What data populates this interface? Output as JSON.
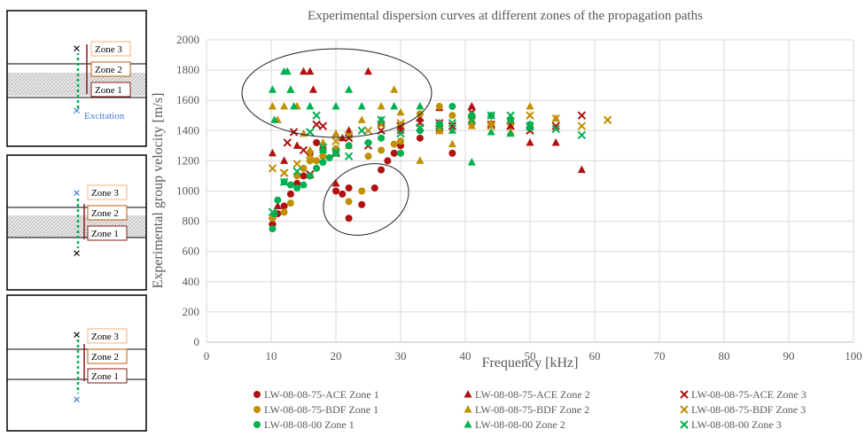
{
  "chart_data": {
    "type": "scatter",
    "title": "Experimental dispersion curves at different zones of the propagation paths",
    "x_label": "Frequency [kHz]",
    "y_label": "Experimental group velocity [m/s]",
    "xlim": [
      0,
      100
    ],
    "xticks": [
      0,
      10,
      20,
      30,
      40,
      50,
      60,
      70,
      80,
      90,
      100
    ],
    "ylim": [
      0,
      2000
    ],
    "yticks": [
      0,
      200,
      400,
      600,
      800,
      1000,
      1200,
      1400,
      1600,
      1800,
      2000
    ],
    "grid": true,
    "series": [
      {
        "name": "LW-08-08-75-ACE Zone 1",
        "color": "#b01010",
        "marker": "circle",
        "x": [
          10.2,
          11,
          12,
          13,
          14,
          15,
          16,
          17,
          18,
          20,
          21,
          22,
          22,
          24,
          26,
          27,
          28,
          29,
          30,
          33,
          36,
          38,
          41
        ],
        "values": [
          780,
          850,
          900,
          980,
          1050,
          1100,
          1250,
          1320,
          1280,
          1000,
          980,
          820,
          1020,
          910,
          1020,
          1140,
          1200,
          1250,
          1300,
          1350,
          1400,
          1250,
          1450
        ]
      },
      {
        "name": "LW-08-08-75-ACE Zone 2",
        "color": "#b01010",
        "marker": "triangle",
        "x": [
          10.2,
          11,
          12,
          14,
          15,
          16,
          16.5,
          18,
          20,
          21,
          22,
          25,
          27,
          30,
          33,
          36,
          41,
          44,
          47,
          50,
          54,
          58
        ],
        "values": [
          1250,
          900,
          1200,
          1300,
          1790,
          1790,
          1670,
          1250,
          1050,
          1350,
          1400,
          1790,
          1450,
          1400,
          1480,
          1550,
          1560,
          1450,
          1430,
          1320,
          1320,
          1140
        ]
      },
      {
        "name": "LW-08-08-75-ACE Zone 3",
        "color": "#b01010",
        "marker": "x",
        "x": [
          10.2,
          12,
          12.5,
          13.5,
          15,
          16,
          17,
          18,
          20,
          22,
          25,
          27,
          30,
          33,
          36,
          38,
          41,
          44,
          47,
          50,
          54,
          58
        ],
        "values": [
          800,
          1120,
          1320,
          1390,
          1270,
          1110,
          1440,
          1430,
          1250,
          1350,
          1300,
          1400,
          1430,
          1450,
          1450,
          1430,
          1520,
          1440,
          1430,
          1400,
          1430,
          1500
        ]
      },
      {
        "name": "LW-08-08-75-BDF Zone 1",
        "color": "#bf9000",
        "marker": "circle",
        "x": [
          10.2,
          12,
          13,
          14,
          15,
          16,
          17,
          18,
          20,
          22,
          24,
          25,
          27,
          29,
          30,
          33,
          36,
          38,
          41
        ],
        "values": [
          820,
          860,
          920,
          1100,
          1150,
          1200,
          1200,
          1230,
          1280,
          930,
          1000,
          1230,
          1270,
          1310,
          1330,
          1510,
          1560,
          1500,
          1500
        ]
      },
      {
        "name": "LW-08-08-75-BDF Zone 2",
        "color": "#bf9000",
        "marker": "triangle",
        "x": [
          10.2,
          11,
          12,
          13,
          14,
          15,
          16,
          18,
          20,
          22,
          24,
          27,
          29,
          30,
          33,
          36,
          38,
          41,
          44,
          47,
          50,
          54
        ],
        "values": [
          1560,
          1470,
          1560,
          1670,
          1560,
          1380,
          1270,
          1320,
          1380,
          1300,
          1470,
          1560,
          1670,
          1520,
          1200,
          1400,
          1310,
          1430,
          1450,
          1390,
          1560,
          1480
        ]
      },
      {
        "name": "LW-08-08-75-BDF Zone 3",
        "color": "#bf9000",
        "marker": "x",
        "x": [
          10.2,
          12,
          14,
          16,
          18,
          20,
          22,
          25,
          27,
          30,
          33,
          36,
          41,
          44,
          47,
          50,
          54,
          58,
          62
        ],
        "values": [
          1150,
          1120,
          1180,
          1240,
          1290,
          1330,
          1370,
          1400,
          1440,
          1450,
          1420,
          1400,
          1460,
          1430,
          1460,
          1500,
          1480,
          1430,
          1470
        ]
      },
      {
        "name": "LW-08-08-00 Zone 1",
        "color": "#00b050",
        "marker": "circle",
        "x": [
          10.2,
          10.5,
          11,
          12,
          13,
          14,
          15,
          16,
          17,
          18,
          19,
          20,
          22,
          25,
          27,
          30,
          33,
          36,
          38,
          41,
          44,
          47,
          50
        ],
        "values": [
          750,
          850,
          940,
          1060,
          1040,
          1020,
          1040,
          1100,
          1150,
          1190,
          1220,
          1250,
          1300,
          1320,
          1350,
          1250,
          1400,
          1440,
          1560,
          1500,
          1500,
          1470,
          1440
        ]
      },
      {
        "name": "LW-08-08-00 Zone 2",
        "color": "#00b050",
        "marker": "triangle",
        "x": [
          10.2,
          10.5,
          12,
          12.5,
          13,
          13.5,
          16,
          18,
          20,
          22,
          24,
          27,
          29,
          33,
          36,
          38,
          41,
          44,
          47,
          50
        ],
        "values": [
          1670,
          1470,
          1790,
          1790,
          1670,
          1560,
          1560,
          1270,
          1560,
          1670,
          1560,
          1470,
          1560,
          1560,
          1450,
          1400,
          1190,
          1390,
          1380,
          1420
        ]
      },
      {
        "name": "LW-08-08-00 Zone 3",
        "color": "#00b050",
        "marker": "x",
        "x": [
          10.2,
          12,
          14,
          16,
          17,
          18,
          20,
          22,
          24,
          27,
          30,
          33,
          36,
          38,
          41,
          44,
          47,
          50,
          54,
          58
        ],
        "values": [
          860,
          1060,
          1130,
          1390,
          1500,
          1290,
          1260,
          1230,
          1400,
          1470,
          1380,
          1420,
          1430,
          1450,
          1470,
          1500,
          1500,
          1430,
          1410,
          1370
        ]
      }
    ]
  },
  "diagrams": [
    {
      "zones": [
        "Zone 3",
        "Zone 2",
        "Zone 1"
      ],
      "excitation": "Excitation"
    },
    {
      "zones": [
        "Zone 3",
        "Zone 2",
        "Zone 1"
      ]
    },
    {
      "zones": [
        "Zone 3",
        "Zone 2",
        "Zone 1"
      ]
    }
  ]
}
